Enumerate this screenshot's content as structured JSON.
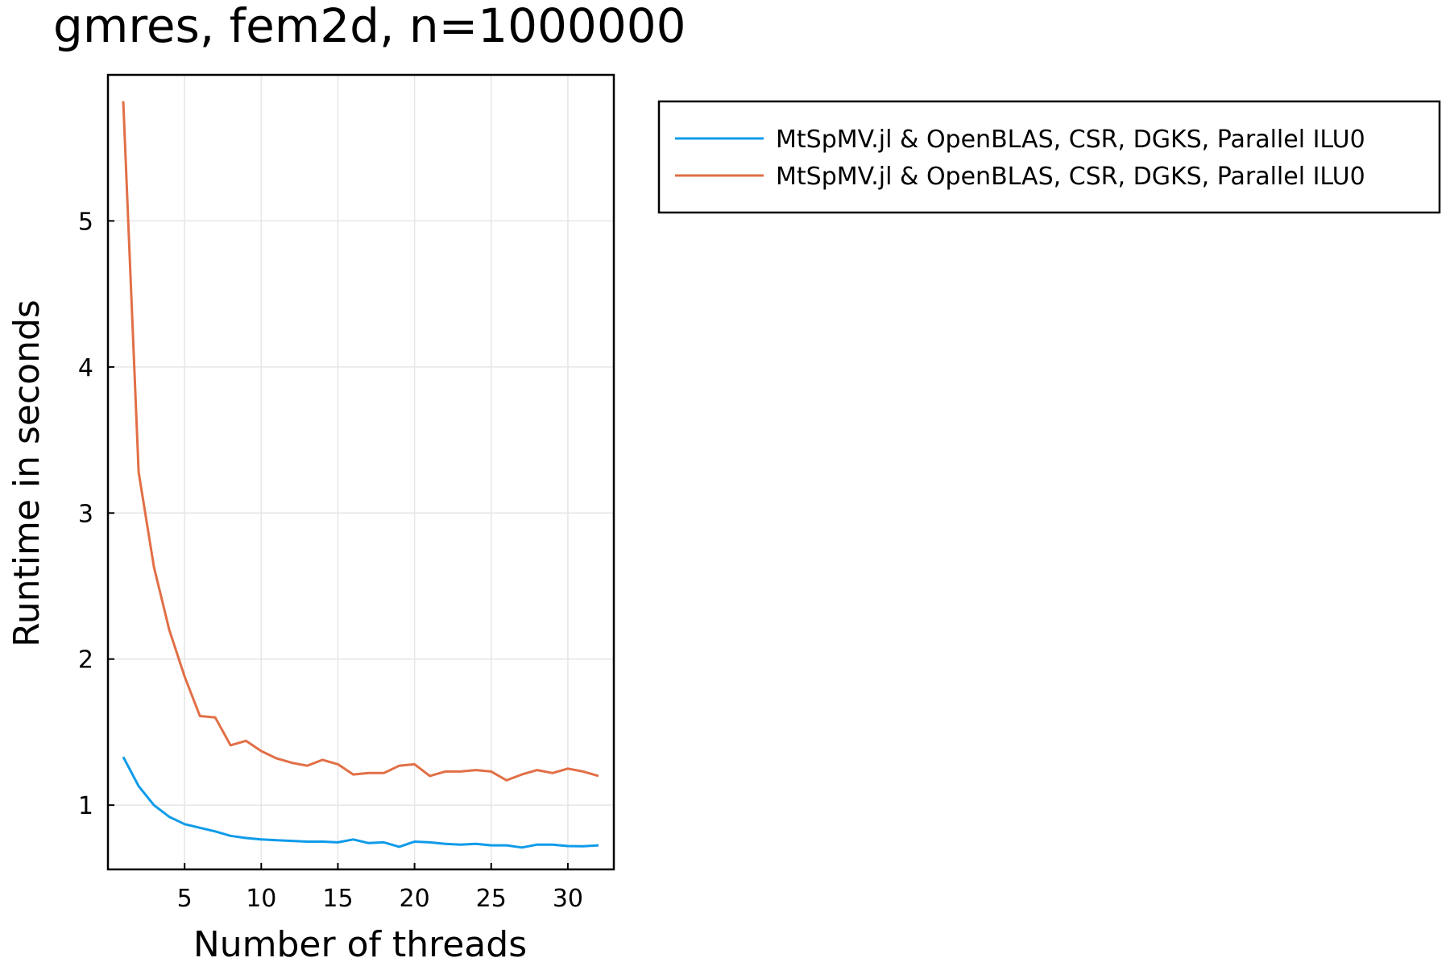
{
  "chart_data": {
    "type": "line",
    "title": "gmres, fem2d, n=1000000",
    "xlabel": "Number of threads",
    "ylabel": "Runtime in seconds",
    "xlim": [
      0,
      33
    ],
    "ylim": [
      0.56,
      6.0
    ],
    "xticks": [
      5,
      10,
      15,
      20,
      25,
      30
    ],
    "yticks": [
      1,
      2,
      3,
      4,
      5
    ],
    "grid": true,
    "legend_position": "outside-right-top",
    "x": [
      1,
      2,
      3,
      4,
      5,
      6,
      7,
      8,
      9,
      10,
      11,
      12,
      13,
      14,
      15,
      16,
      17,
      18,
      19,
      20,
      21,
      22,
      23,
      24,
      25,
      26,
      27,
      28,
      29,
      30,
      31,
      32
    ],
    "series": [
      {
        "name": "MtSpMV.jl & OpenBLAS, CSR, DGKS, Parallel ILU0",
        "color": "#0f9be9",
        "values": [
          1.33,
          1.13,
          1.0,
          0.92,
          0.87,
          0.845,
          0.82,
          0.79,
          0.775,
          0.765,
          0.76,
          0.755,
          0.75,
          0.75,
          0.745,
          0.765,
          0.74,
          0.745,
          0.715,
          0.75,
          0.745,
          0.735,
          0.73,
          0.735,
          0.725,
          0.725,
          0.71,
          0.73,
          0.73,
          0.72,
          0.718,
          0.725
        ]
      },
      {
        "name": "MtSpMV.jl & OpenBLAS, CSR, DGKS, Parallel ILU0",
        "color": "#e26f46",
        "values": [
          5.82,
          3.28,
          2.63,
          2.2,
          1.88,
          1.61,
          1.6,
          1.41,
          1.44,
          1.37,
          1.32,
          1.29,
          1.27,
          1.31,
          1.28,
          1.21,
          1.22,
          1.22,
          1.27,
          1.28,
          1.2,
          1.23,
          1.23,
          1.24,
          1.23,
          1.17,
          1.21,
          1.24,
          1.22,
          1.25,
          1.23,
          1.2
        ]
      }
    ]
  }
}
